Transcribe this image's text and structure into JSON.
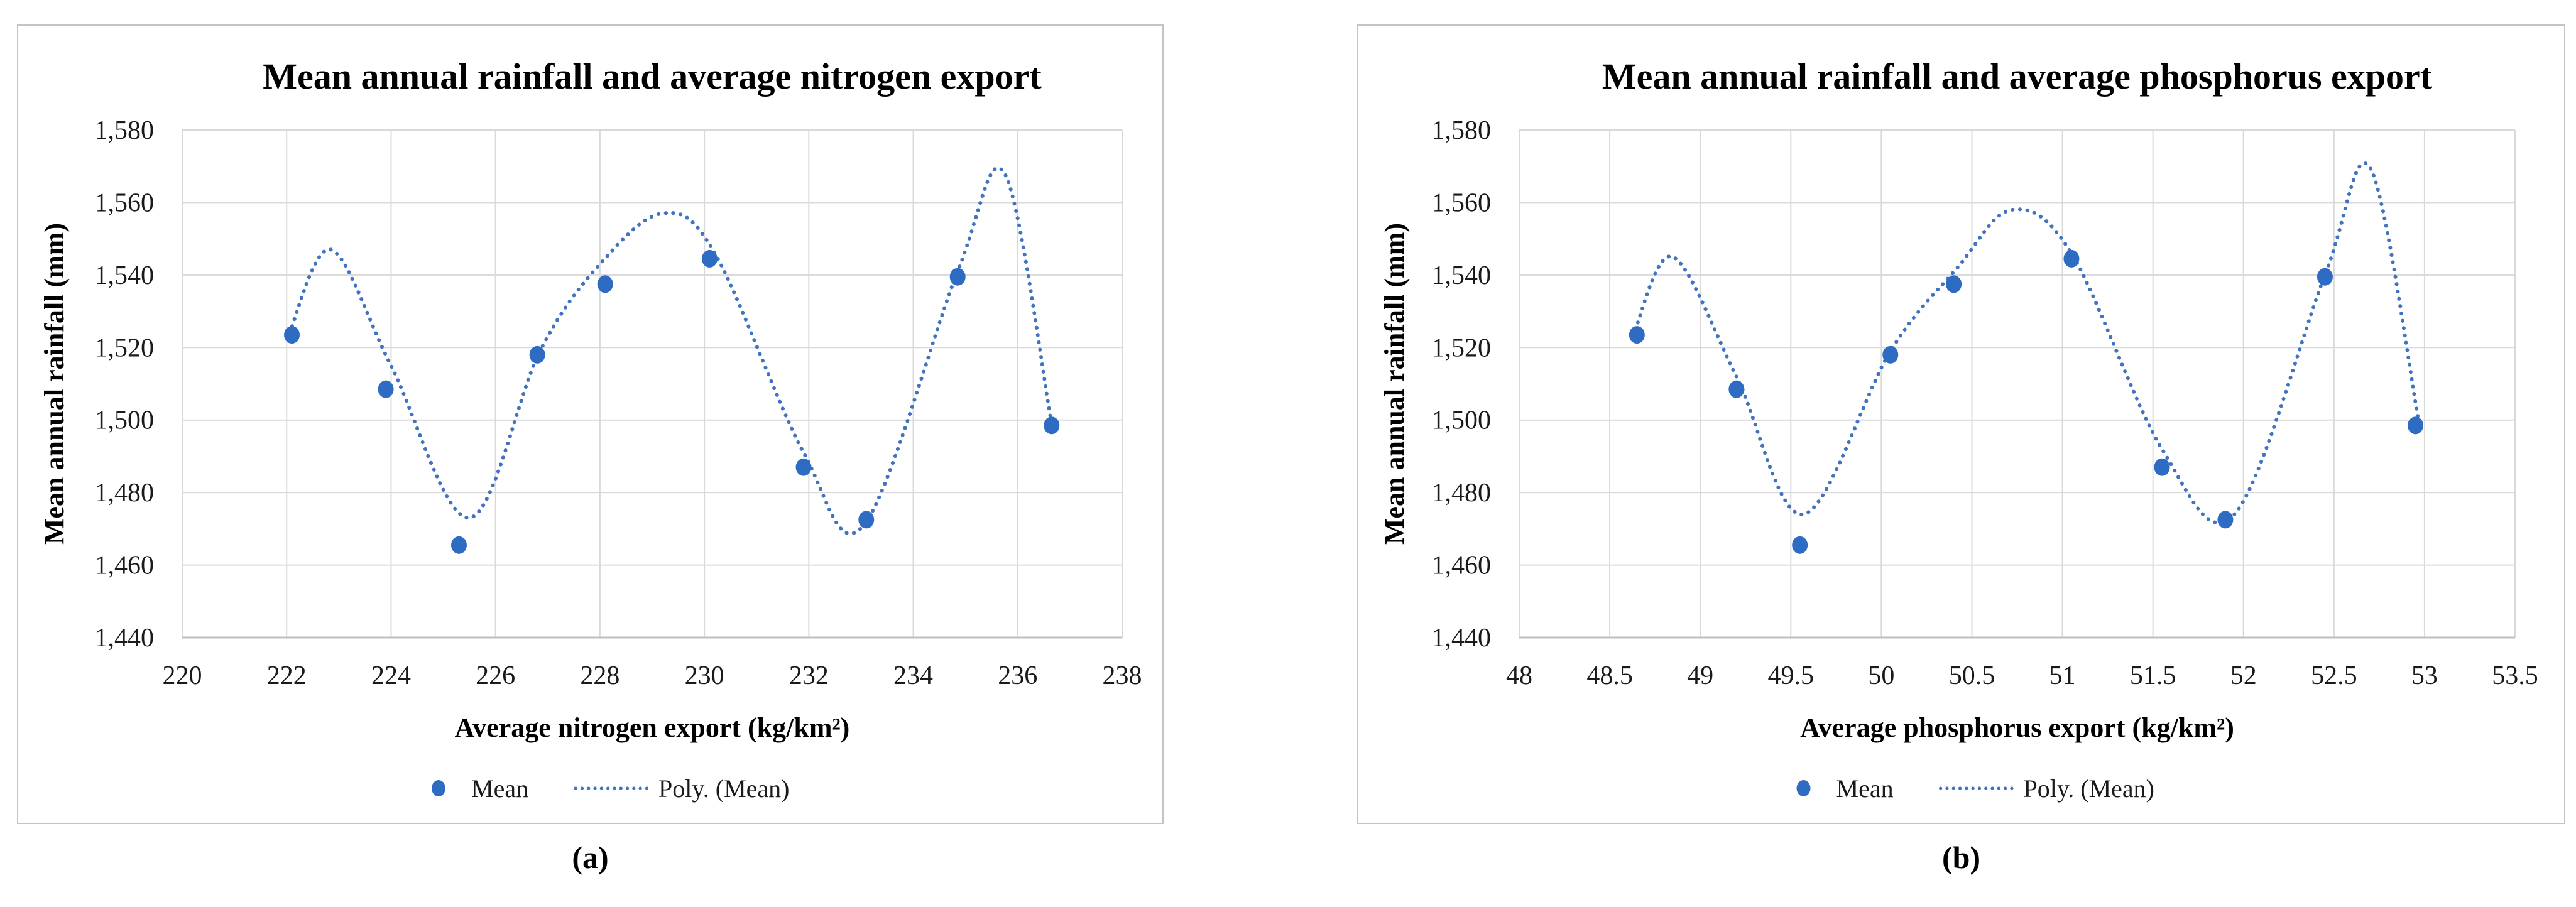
{
  "page": {
    "background": "#ffffff"
  },
  "colors": {
    "marker": "#2E6BC3",
    "trendline": "#4273BE",
    "gridline": "#D9D9D9",
    "axis_line": "#BFBFBF",
    "panel_border": "#C4C4C4",
    "title_text": "#000000",
    "tick_text": "#1A1A1A"
  },
  "chart_data": [
    {
      "type": "scatter",
      "caption": "(a)",
      "title": "Mean annual rainfall and average nitrogen export",
      "xlabel": "Average nitrogen export (kg/km²)",
      "ylabel": "Mean annual rainfall (mm)",
      "xlim": [
        220,
        238
      ],
      "xstep": 2,
      "ylim": [
        1440,
        1580
      ],
      "ystep": 20,
      "grid": true,
      "legend": [
        "Mean",
        "Poly. (Mean)"
      ],
      "series": [
        {
          "name": "Mean",
          "x": [
            222.1,
            223.9,
            225.3,
            226.8,
            228.1,
            230.1,
            231.9,
            233.1,
            234.85,
            236.65
          ],
          "y": [
            1523.5,
            1508.5,
            1465.5,
            1518,
            1537.5,
            1544.5,
            1487,
            1472.5,
            1539.5,
            1498.5
          ]
        }
      ],
      "trendline": {
        "name": "Poly. (Mean)",
        "type": "polynomial",
        "points": [
          [
            222.05,
            1524
          ],
          [
            222.85,
            1547
          ],
          [
            224.0,
            1515
          ],
          [
            225.5,
            1473
          ],
          [
            226.85,
            1519
          ],
          [
            228.0,
            1543
          ],
          [
            229.2,
            1557
          ],
          [
            230.2,
            1546
          ],
          [
            231.9,
            1491
          ],
          [
            233.05,
            1471
          ],
          [
            234.85,
            1541
          ],
          [
            235.75,
            1568
          ],
          [
            236.65,
            1499
          ]
        ]
      }
    },
    {
      "type": "scatter",
      "caption": "(b)",
      "title": "Mean annual rainfall and average phosphorus export",
      "xlabel": "Average phosphorus export (kg/km²)",
      "ylabel": "Mean annual rainfall (mm)",
      "xlim": [
        48,
        53.5
      ],
      "xstep": 0.5,
      "ylim": [
        1440,
        1580
      ],
      "ystep": 20,
      "grid": true,
      "legend": [
        "Mean",
        "Poly. (Mean)"
      ],
      "series": [
        {
          "name": "Mean",
          "x": [
            48.65,
            49.2,
            49.55,
            50.05,
            50.4,
            51.05,
            51.55,
            51.9,
            52.45,
            52.95
          ],
          "y": [
            1523.5,
            1508.5,
            1465.5,
            1518,
            1537.5,
            1544.5,
            1487,
            1472.5,
            1539.5,
            1498.5
          ]
        }
      ],
      "trendline": {
        "name": "Poly. (Mean)",
        "type": "polynomial",
        "points": [
          [
            48.64,
            1525
          ],
          [
            48.85,
            1545
          ],
          [
            49.2,
            1512
          ],
          [
            49.57,
            1474
          ],
          [
            50.05,
            1519
          ],
          [
            50.42,
            1542
          ],
          [
            50.72,
            1558
          ],
          [
            51.05,
            1546
          ],
          [
            51.55,
            1492
          ],
          [
            51.95,
            1474
          ],
          [
            52.45,
            1540
          ],
          [
            52.7,
            1569.5
          ],
          [
            52.97,
            1499
          ]
        ]
      }
    }
  ]
}
